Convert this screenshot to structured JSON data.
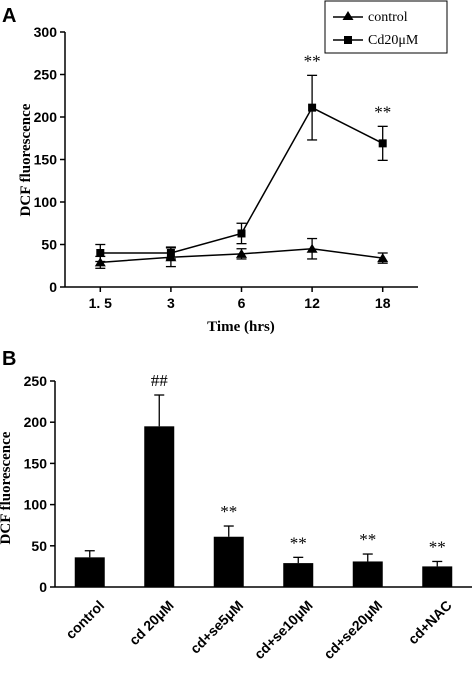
{
  "chart_data": [
    {
      "panel_label": "A",
      "type": "line",
      "categories": [
        "1. 5",
        "3",
        "6",
        "12",
        "18"
      ],
      "ylabel": "DCF fluorescence",
      "xlabel": "Time (hrs)",
      "ylim": [
        0,
        300
      ],
      "yticks": [
        0,
        50,
        100,
        150,
        200,
        250,
        300
      ],
      "legend_position": "top-right",
      "series": [
        {
          "name": "control",
          "marker": "triangle",
          "values": [
            29,
            35,
            39,
            45,
            34
          ],
          "errors": [
            7,
            11,
            6,
            12,
            6
          ]
        },
        {
          "name": "Cd20μM",
          "marker": "square",
          "values": [
            40,
            40,
            63,
            211,
            169
          ],
          "errors": [
            10,
            7,
            12,
            38,
            20
          ],
          "annotations": [
            "",
            "",
            "",
            "**",
            "**"
          ]
        }
      ]
    },
    {
      "panel_label": "B",
      "type": "bar",
      "categories": [
        "control",
        "cd 20μM",
        "cd+se5μM",
        "cd+se10μM",
        "cd+se20μM",
        "cd+NAC"
      ],
      "values": [
        36,
        195,
        61,
        29,
        31,
        25
      ],
      "errors": [
        8,
        38,
        13,
        7,
        9,
        6
      ],
      "annotations": [
        "",
        "##",
        "**",
        "**",
        "**",
        "**"
      ],
      "ylabel": "DCF fluorescence",
      "ylim": [
        0,
        250
      ],
      "yticks": [
        0,
        50,
        100,
        150,
        200,
        250
      ]
    }
  ]
}
